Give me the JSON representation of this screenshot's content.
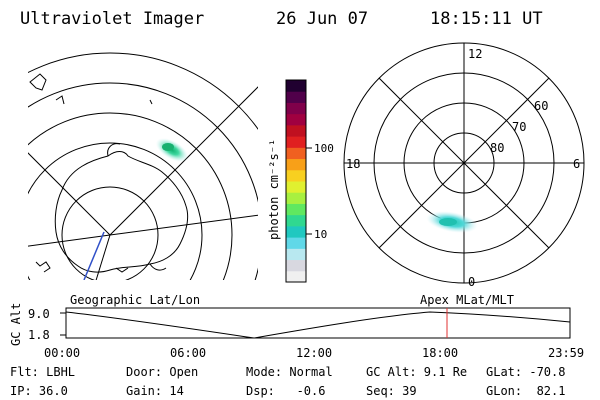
{
  "header": {
    "title": "Ultraviolet Imager",
    "date": "26 Jun 07",
    "time": "18:15:11 UT"
  },
  "colorbar": {
    "unit_label": "photon cm⁻²s⁻¹",
    "ticks": [
      "100",
      "10"
    ],
    "colors": [
      "#f0f0f0",
      "#d8d8e0",
      "#b8e8f0",
      "#60d8e8",
      "#20c8c0",
      "#30d890",
      "#60e860",
      "#a8f040",
      "#e0f030",
      "#f8d020",
      "#f8a018",
      "#f06020",
      "#e02020",
      "#c01020",
      "#a00040",
      "#80004a",
      "#50004a",
      "#200030"
    ]
  },
  "left_map": {
    "label": "Geographic Lat/Lon"
  },
  "right_map": {
    "label": "Apex MLat/MLT",
    "mlt_labels": [
      "12",
      "18",
      "6",
      "0"
    ],
    "lat_labels": [
      "60",
      "70",
      "80"
    ]
  },
  "timeline": {
    "ylabel": "GC Alt",
    "y_ticks": [
      "9.0",
      "1.8"
    ],
    "x_ticks": [
      "00:00",
      "06:00",
      "12:00",
      "18:00",
      "23:59"
    ],
    "current_time_color": "#e03030"
  },
  "status": {
    "filter": "Flt: LBHL",
    "door": "Door: Open",
    "mode": "Mode: Normal",
    "gc_alt": "GC Alt: 9.1 Re",
    "glat": "GLat: -70.8",
    "ip": "IP: 36.0",
    "gain": "Gain: 14",
    "dsp": "Dsp:   -0.6",
    "seq": "Seq: 39",
    "glon": "GLon:  82.1"
  }
}
